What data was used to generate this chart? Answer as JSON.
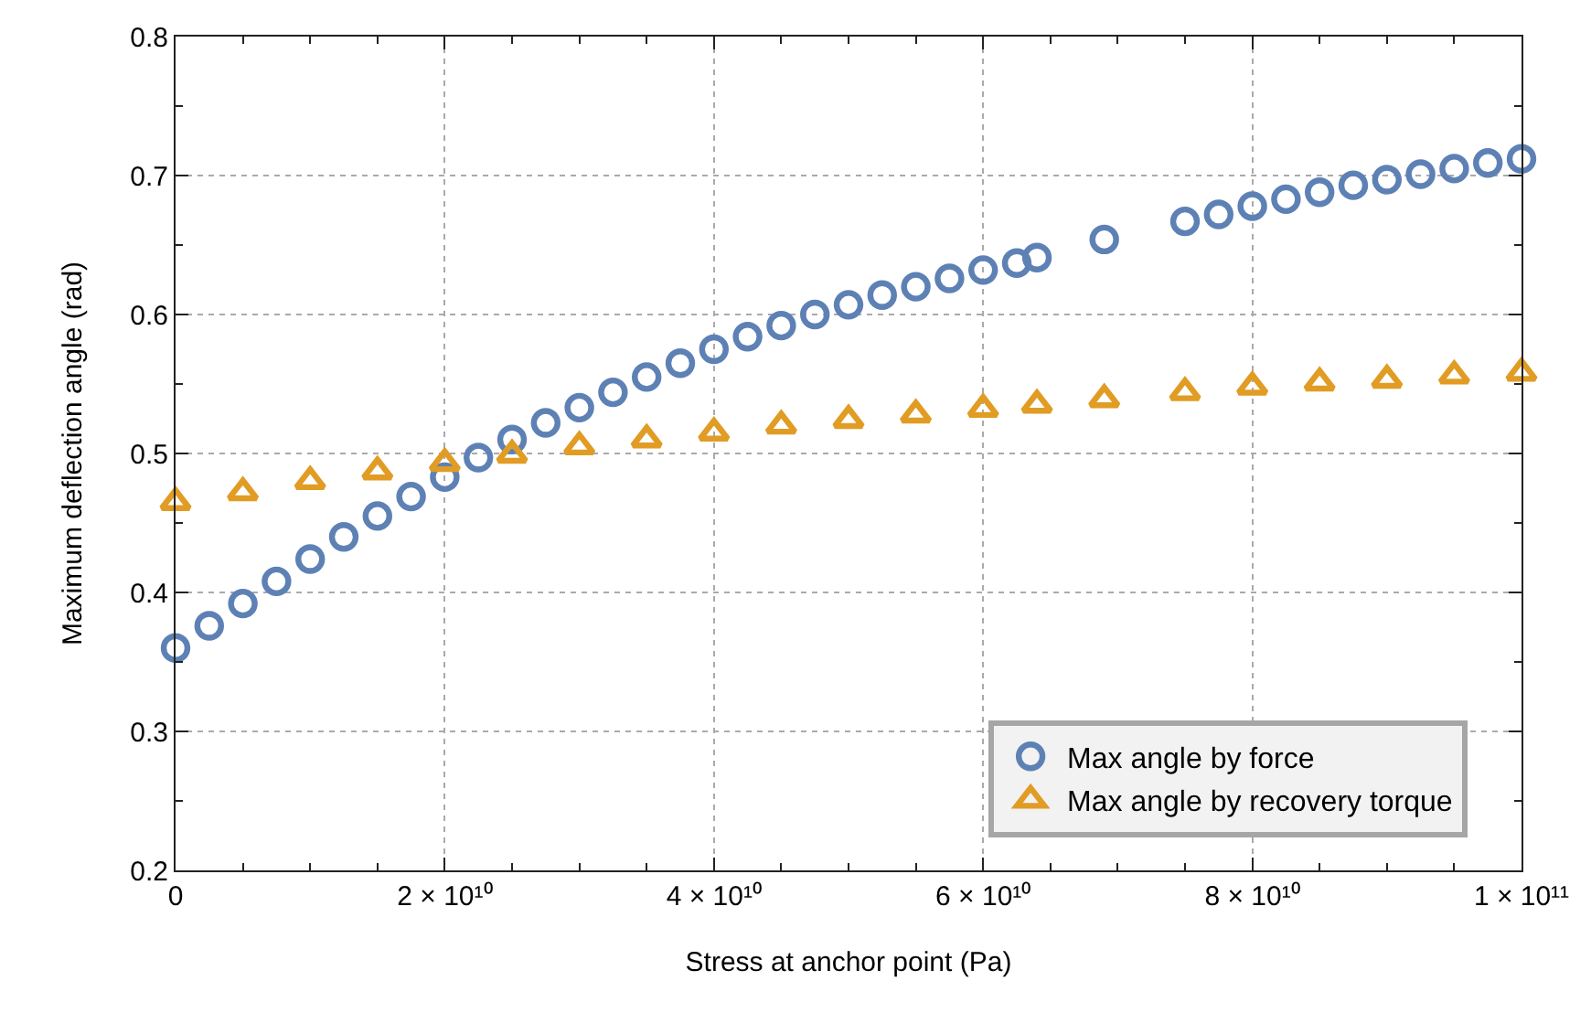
{
  "chart_data": {
    "type": "scatter",
    "xlabel": "Stress at anchor point (Pa)",
    "ylabel": "Maximum deflection angle (rad)",
    "xlim": [
      0,
      100000000000
    ],
    "ylim": [
      0.2,
      0.8
    ],
    "xticks": [
      0,
      {
        "value": 20000000000,
        "label": "2 × 10¹⁰"
      },
      {
        "value": 40000000000,
        "label": "4 × 10¹⁰"
      },
      {
        "value": 60000000000,
        "label": "6 × 10¹⁰"
      },
      {
        "value": 80000000000,
        "label": "8 × 10¹⁰"
      },
      {
        "value": 100000000000,
        "label": "1 × 10¹¹"
      }
    ],
    "yticks": [
      0.2,
      0.3,
      0.4,
      0.5,
      0.6,
      0.7,
      0.8
    ],
    "grid": true,
    "legend": "bottom right",
    "series": [
      {
        "name": "Max angle by force",
        "color": "#5e81b5",
        "marker": "circle",
        "x": [
          0,
          2500000000,
          5000000000,
          7500000000,
          10000000000,
          12500000000,
          15000000000,
          17500000000,
          20000000000,
          22500000000,
          25000000000,
          27500000000,
          30000000000,
          32500000000,
          35000000000,
          37500000000,
          40000000000,
          42500000000,
          45000000000,
          47500000000,
          50000000000,
          52500000000,
          55000000000,
          57500000000,
          60000000000,
          62500000000,
          64000000000,
          69000000000,
          75000000000,
          77500000000,
          80000000000,
          82500000000,
          85000000000,
          87500000000,
          90000000000,
          92500000000,
          95000000000,
          97500000000,
          100000000000
        ],
        "values": [
          0.36,
          0.376,
          0.392,
          0.408,
          0.424,
          0.44,
          0.455,
          0.469,
          0.483,
          0.497,
          0.51,
          0.522,
          0.533,
          0.544,
          0.555,
          0.565,
          0.575,
          0.584,
          0.592,
          0.6,
          0.607,
          0.614,
          0.62,
          0.626,
          0.632,
          0.637,
          0.641,
          0.654,
          0.667,
          0.672,
          0.678,
          0.683,
          0.688,
          0.693,
          0.697,
          0.701,
          0.705,
          0.709,
          0.712
        ]
      },
      {
        "name": "Max angle by recovery torque",
        "color": "#e19c24",
        "marker": "triangle",
        "x": [
          0,
          5000000000,
          10000000000,
          15000000000,
          20000000000,
          25000000000,
          30000000000,
          35000000000,
          40000000000,
          45000000000,
          50000000000,
          55000000000,
          60000000000,
          64000000000,
          69000000000,
          75000000000,
          80000000000,
          85000000000,
          90000000000,
          95000000000,
          100000000000
        ],
        "values": [
          0.465,
          0.472,
          0.48,
          0.487,
          0.493,
          0.499,
          0.505,
          0.51,
          0.515,
          0.52,
          0.524,
          0.528,
          0.532,
          0.535,
          0.539,
          0.544,
          0.548,
          0.551,
          0.553,
          0.556,
          0.558
        ]
      }
    ]
  }
}
